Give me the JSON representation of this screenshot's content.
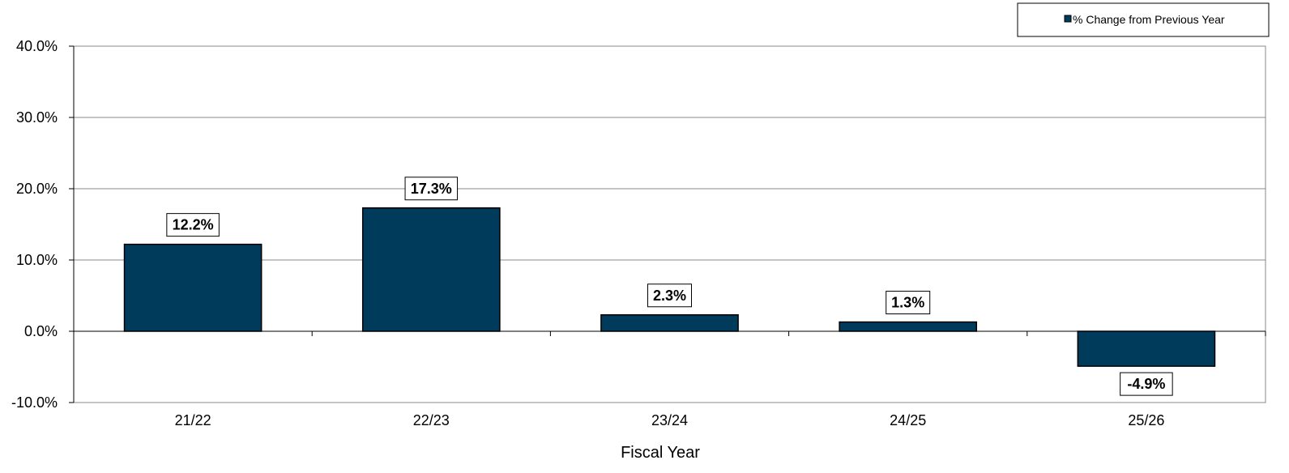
{
  "chart_data": {
    "type": "bar",
    "title": "",
    "xlabel": "Fiscal Year",
    "ylabel": "",
    "categories": [
      "21/22",
      "22/23",
      "23/24",
      "24/25",
      "25/26"
    ],
    "series": [
      {
        "name": "% Change from Previous Year",
        "values": [
          12.2,
          17.3,
          2.3,
          1.3,
          -4.9
        ],
        "color": "#003b5c"
      }
    ],
    "data_labels": [
      "12.2%",
      "17.3%",
      "2.3%",
      "1.3%",
      "-4.9%"
    ],
    "ylim": [
      -10,
      40
    ],
    "yticks": [
      -10,
      0,
      10,
      20,
      30,
      40
    ],
    "ytick_labels": [
      "-10.0%",
      "0.0%",
      "10.0%",
      "20.0%",
      "30.0%",
      "40.0%"
    ],
    "grid": true,
    "legend_position": "top-right"
  }
}
